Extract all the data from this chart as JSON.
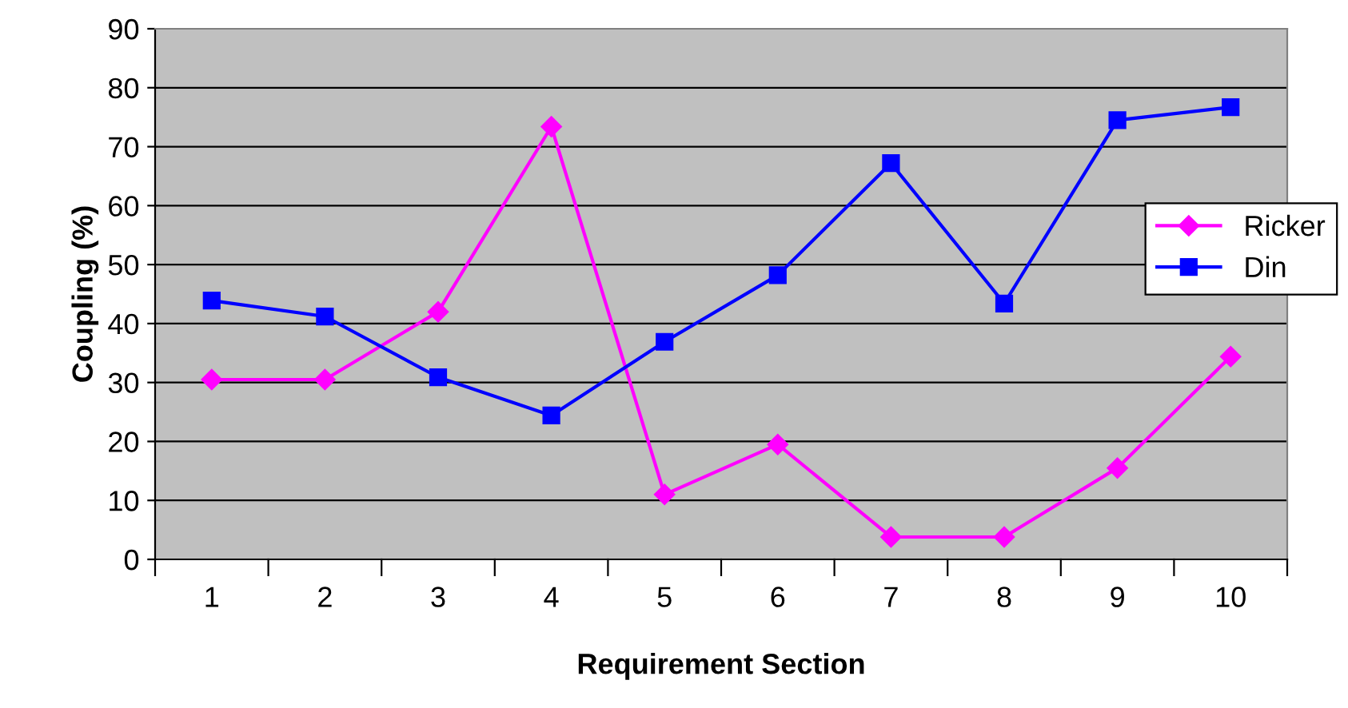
{
  "chart_data": {
    "type": "line",
    "xlabel": "Requirement Section",
    "ylabel": "Coupling (%)",
    "categories": [
      "1",
      "2",
      "3",
      "4",
      "5",
      "6",
      "7",
      "8",
      "9",
      "10"
    ],
    "series": [
      {
        "name": "Ricker",
        "color": "#ff00ff",
        "marker": "diamond",
        "values": [
          30.5,
          30.5,
          42,
          73.4,
          11,
          19.5,
          3.8,
          3.8,
          15.5,
          34.4
        ]
      },
      {
        "name": "Din",
        "color": "#0000ff",
        "marker": "square",
        "values": [
          43.9,
          41.2,
          30.9,
          24.4,
          36.9,
          48.2,
          67.2,
          43.4,
          74.5,
          76.7
        ]
      }
    ],
    "ylim": [
      0,
      90
    ],
    "yticks": [
      0,
      10,
      20,
      30,
      40,
      50,
      60,
      70,
      80,
      90
    ],
    "grid": "y",
    "legend": "right",
    "line_style": "solid"
  }
}
